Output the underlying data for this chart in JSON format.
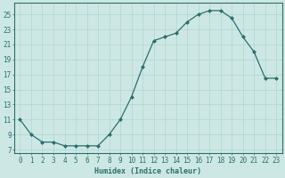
{
  "x": [
    0,
    1,
    2,
    3,
    4,
    5,
    6,
    7,
    8,
    9,
    10,
    11,
    12,
    13,
    14,
    15,
    16,
    17,
    18,
    19,
    20,
    21,
    22,
    23
  ],
  "y": [
    11,
    9,
    8,
    8,
    7.5,
    7.5,
    7.5,
    7.5,
    9,
    11,
    14,
    18,
    21.5,
    22,
    22.5,
    24,
    25,
    25.5,
    25.5,
    24.5,
    22,
    20,
    16.5,
    16.5
  ],
  "line_color": "#2d6e6e",
  "marker": "D",
  "markersize": 2.0,
  "linewidth": 0.9,
  "bg_color": "#cde8e4",
  "grid_color": "#b0d4d0",
  "xlabel": "Humidex (Indice chaleur)",
  "xlabel_fontsize": 6.0,
  "tick_fontsize": 5.5,
  "ylim": [
    6.5,
    26.5
  ],
  "xlim": [
    -0.5,
    23.5
  ],
  "yticks": [
    7,
    9,
    11,
    13,
    15,
    17,
    19,
    21,
    23,
    25
  ],
  "xticks": [
    0,
    1,
    2,
    3,
    4,
    5,
    6,
    7,
    8,
    9,
    10,
    11,
    12,
    13,
    14,
    15,
    16,
    17,
    18,
    19,
    20,
    21,
    22,
    23
  ]
}
